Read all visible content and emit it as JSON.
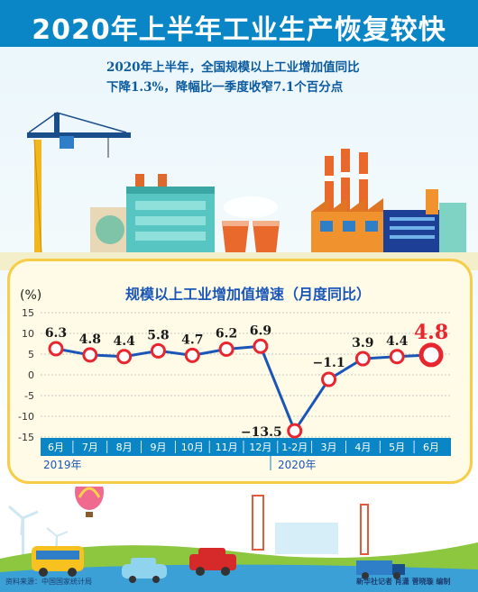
{
  "header": {
    "title": "2020年上半年工业生产恢复较快",
    "summary_line1": "2020年上半年，全国规模以上工业增加值同比",
    "summary_line2": "下降1.3%，降幅比一季度收窄7.1个百分点"
  },
  "colors": {
    "title_bar": "#0a86c7",
    "line": "#1a56b8",
    "marker": "#e8262f",
    "highlight_label": "#e8262f",
    "panel_border": "#f7cc48",
    "panel_fill": "#fffbe6",
    "axis_bar": "#0a86c7"
  },
  "chart_data": {
    "type": "line",
    "title": "规模以上工业增加值增速（月度同比）",
    "ylabel": "(%)",
    "ylim": [
      -15,
      15
    ],
    "yticks": [
      15,
      10,
      5,
      0,
      -5,
      -10,
      -15
    ],
    "grid": true,
    "categories": [
      "6月",
      "7月",
      "8月",
      "9月",
      "10月",
      "11月",
      "12月",
      "1-2月",
      "3月",
      "4月",
      "5月",
      "6月"
    ],
    "values": [
      6.3,
      4.8,
      4.4,
      5.8,
      4.7,
      6.2,
      6.9,
      -13.5,
      -1.1,
      3.9,
      4.4,
      4.8
    ],
    "value_labels": [
      "6.3",
      "4.8",
      "4.4",
      "5.8",
      "4.7",
      "6.2",
      "6.9",
      "−13.5",
      "−1.1",
      "3.9",
      "4.4",
      "4.8"
    ],
    "year_labels": [
      "2019年",
      "2020年"
    ],
    "highlight_index": 11
  },
  "footer": {
    "source": "资料来源：中国国家统计局",
    "credit": "新华社记者  肖潇  菅晓璇  编制"
  }
}
